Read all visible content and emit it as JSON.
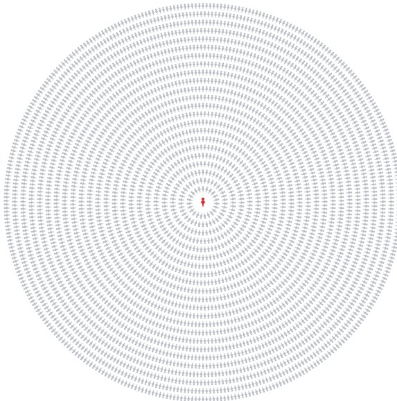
{
  "figure": {
    "icon_name": "person-icon",
    "highlight": {
      "count": 1,
      "color": "#d62728"
    },
    "crowd": {
      "color": "#b9bcc3",
      "ring_count": 23
    }
  }
}
